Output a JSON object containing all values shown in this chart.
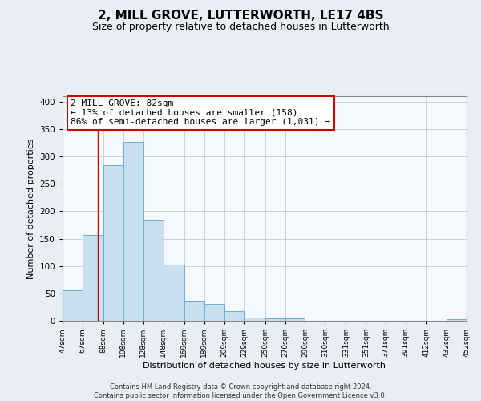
{
  "title": "2, MILL GROVE, LUTTERWORTH, LE17 4BS",
  "subtitle": "Size of property relative to detached houses in Lutterworth",
  "xlabel": "Distribution of detached houses by size in Lutterworth",
  "ylabel": "Number of detached properties",
  "footer_line1": "Contains HM Land Registry data © Crown copyright and database right 2024.",
  "footer_line2": "Contains public sector information licensed under the Open Government Licence v3.0.",
  "bar_edges": [
    47,
    67,
    88,
    108,
    128,
    148,
    169,
    189,
    209,
    229,
    250,
    270,
    290,
    310,
    331,
    351,
    371,
    391,
    412,
    432,
    452
  ],
  "bar_heights": [
    55,
    157,
    284,
    327,
    184,
    103,
    37,
    31,
    18,
    6,
    5,
    4,
    0,
    0,
    0,
    0,
    0,
    0,
    0,
    3
  ],
  "tick_labels": [
    "47sqm",
    "67sqm",
    "88sqm",
    "108sqm",
    "128sqm",
    "148sqm",
    "169sqm",
    "189sqm",
    "209sqm",
    "229sqm",
    "250sqm",
    "270sqm",
    "290sqm",
    "310sqm",
    "331sqm",
    "351sqm",
    "371sqm",
    "391sqm",
    "412sqm",
    "432sqm",
    "452sqm"
  ],
  "bar_color": "#c8dff0",
  "bar_edge_color": "#6baed6",
  "property_line_x": 82,
  "property_line_color": "#cc0000",
  "annotation_line1": "2 MILL GROVE: 82sqm",
  "annotation_line2": "← 13% of detached houses are smaller (158)",
  "annotation_line3": "86% of semi-detached houses are larger (1,031) →",
  "ylim": [
    0,
    410
  ],
  "yticks": [
    0,
    50,
    100,
    150,
    200,
    250,
    300,
    350,
    400
  ],
  "background_color": "#e8eef4",
  "plot_background_color": "#f5f8fc",
  "grid_color": "#c0ccd8",
  "title_fontsize": 11,
  "subtitle_fontsize": 9,
  "xlabel_fontsize": 8,
  "ylabel_fontsize": 8
}
